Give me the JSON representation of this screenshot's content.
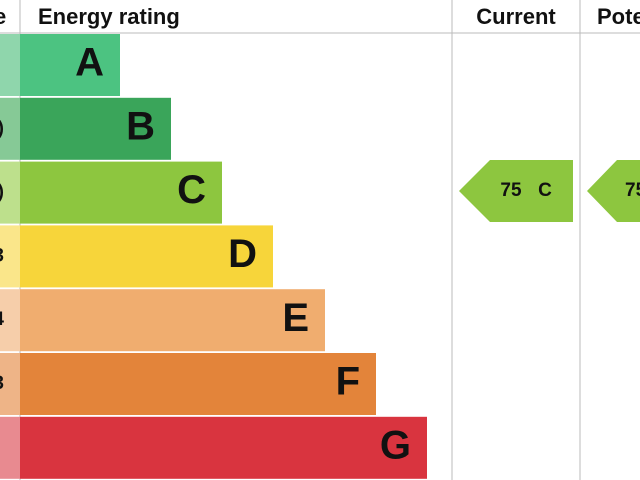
{
  "header": {
    "score": "e",
    "rating": "Energy rating",
    "current": "Current",
    "potential": "Pote"
  },
  "rows": [
    {
      "rating": "A"
    },
    {
      "rating": "B",
      "score": ")"
    },
    {
      "rating": "C",
      "score": ")"
    },
    {
      "rating": "D",
      "score": "3"
    },
    {
      "rating": "E",
      "score": "4"
    },
    {
      "rating": "F",
      "score": "3"
    },
    {
      "rating": "G"
    }
  ],
  "current": {
    "score": "75",
    "band": "C"
  },
  "potential": {
    "score": "75"
  }
}
